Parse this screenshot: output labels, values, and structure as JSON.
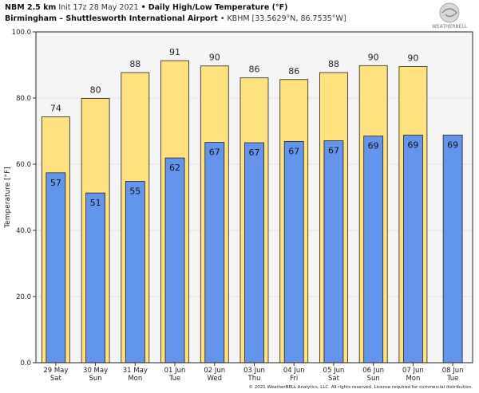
{
  "header": {
    "model": "NBM 2.5 km",
    "init": "Init 17z 28 May 2021",
    "bullet": "•",
    "title": "Daily High/Low Temperature (°F)",
    "station": "Birmingham – Shuttlesworth International Airport",
    "station_id": "• KBHM [33.5629°N, 86.7535°W]"
  },
  "logo": {
    "name": "weatherbell-logo",
    "text": "WEATHERBELL"
  },
  "copyright": "© 2021 WeatherBELL Analytics, LLC. All rights reserved. License required for commercial distribution.",
  "colors": {
    "high": "#ffe17f",
    "low": "#6495ed",
    "plot_bg": "#f5f5f5",
    "grid": "#e2e2e2",
    "bar_edge": "#222222"
  },
  "chart_data": {
    "type": "bar",
    "title": "Daily High/Low Temperature (°F)",
    "ylabel": "Temperature [°F]",
    "ylim": [
      0,
      100
    ],
    "yticks": [
      0,
      20,
      40,
      60,
      80,
      100
    ],
    "ytick_labels": [
      "0.0",
      "20.0",
      "40.0",
      "60.0",
      "80.0",
      "100.0"
    ],
    "grid": true,
    "categories": [
      {
        "date": "29 May",
        "day": "Sat"
      },
      {
        "date": "30 May",
        "day": "Sun"
      },
      {
        "date": "31 May",
        "day": "Mon"
      },
      {
        "date": "01 Jun",
        "day": "Tue"
      },
      {
        "date": "02 Jun",
        "day": "Wed"
      },
      {
        "date": "03 Jun",
        "day": "Thu"
      },
      {
        "date": "04 Jun",
        "day": "Fri"
      },
      {
        "date": "05 Jun",
        "day": "Sat"
      },
      {
        "date": "06 Jun",
        "day": "Sun"
      },
      {
        "date": "07 Jun",
        "day": "Mon"
      },
      {
        "date": "08 Jun",
        "day": "Tue"
      }
    ],
    "series": [
      {
        "name": "High",
        "values": [
          74.3,
          79.9,
          87.7,
          91.3,
          89.7,
          86.1,
          85.6,
          87.7,
          89.8,
          89.5,
          null
        ],
        "labels": [
          "74",
          "80",
          "88",
          "91",
          "90",
          "86",
          "86",
          "88",
          "90",
          "90",
          ""
        ]
      },
      {
        "name": "Low",
        "values": [
          57.4,
          51.3,
          54.8,
          61.9,
          66.6,
          66.5,
          66.9,
          67.1,
          68.5,
          68.8,
          68.8
        ],
        "labels": [
          "57",
          "51",
          "55",
          "62",
          "67",
          "67",
          "67",
          "67",
          "69",
          "69",
          "69"
        ]
      }
    ]
  }
}
